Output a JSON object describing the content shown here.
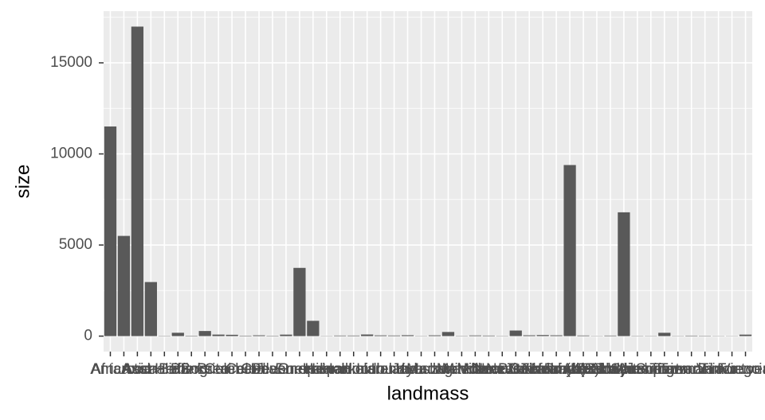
{
  "chart_data": {
    "type": "bar",
    "x_label": "landmass",
    "y_label": "size",
    "categories": [
      "Africa",
      "Antarctica",
      "Asia",
      "Australia",
      "Axel Heiberg",
      "Baffin",
      "Banks",
      "Borneo",
      "Britain",
      "Celebes",
      "Celon",
      "Cuba",
      "Devon",
      "Ellesmere",
      "Europe",
      "Greenland",
      "Hainan",
      "Hispaniola",
      "Hokkaido",
      "Honshu",
      "Iceland",
      "Ireland",
      "Java",
      "Kyushu",
      "Luzon",
      "Madagascar",
      "Melville",
      "Mindanao",
      "Moluccas",
      "New Britain",
      "New Guinea",
      "New Zealand (N)",
      "New Zealand (S)",
      "Newfoundland",
      "North America",
      "Novaya Zemlya",
      "Prince of Wales",
      "Sakhalin",
      "South America",
      "Southampton",
      "Spitsbergen",
      "Sumatra",
      "Taiwan",
      "Tasmania",
      "Tierra del Fuego",
      "Timor",
      "Vancouver",
      "Victoria"
    ],
    "values": [
      11506,
      5500,
      16988,
      2968,
      16,
      184,
      23,
      280,
      84,
      73,
      25,
      43,
      21,
      82,
      3745,
      840,
      13,
      30,
      30,
      89,
      40,
      33,
      49,
      14,
      42,
      227,
      16,
      36,
      29,
      15,
      306,
      44,
      58,
      43,
      9390,
      32,
      13,
      29,
      6795,
      16,
      15,
      183,
      14,
      26,
      19,
      13,
      12,
      82
    ],
    "color": "#595959",
    "ylim": [
      -849.4,
      17837.4
    ],
    "yticks": [
      0,
      5000,
      10000,
      15000
    ],
    "grid": true
  }
}
